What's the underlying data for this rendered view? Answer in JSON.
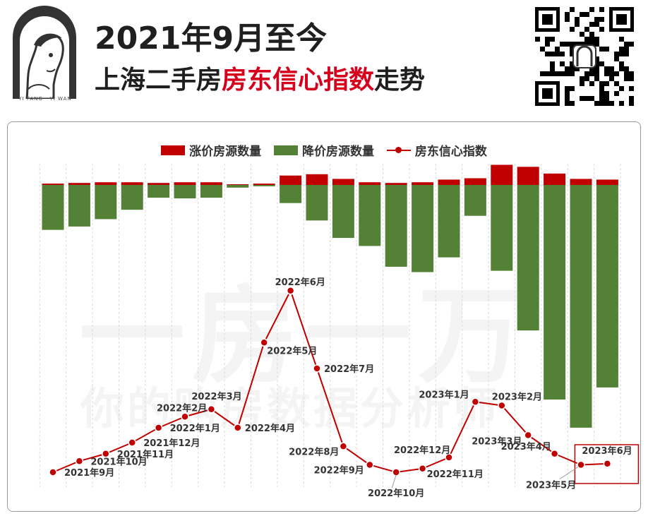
{
  "brand": {
    "logo_text": "YI FANG · YI WAN",
    "qr_icon": "qr-code-icon"
  },
  "header": {
    "title_line1": "2021年9月至今",
    "title_line2_prefix": "上海二手房",
    "title_line2_highlight": "房东信心指数",
    "title_line2_suffix": "走势"
  },
  "watermark": {
    "large": "一房一万",
    "small": "你的购房数据分析师"
  },
  "colors": {
    "up": "#c00000",
    "down": "#538135",
    "index_line": "#c00000",
    "highlight_box": "#c00000",
    "title_highlight": "#d6001c"
  },
  "chart_data": {
    "type": "bar+line",
    "categories": [
      "2021年9月",
      "2021年10月",
      "2021年11月",
      "2021年12月",
      "2022年1月",
      "2022年2月",
      "2022年3月",
      "2022年4月",
      "2022年5月",
      "2022年6月",
      "2022年7月",
      "2022年8月",
      "2022年9月",
      "2022年10月",
      "2022年11月",
      "2022年12月",
      "2023年1月",
      "2023年2月",
      "2023年3月",
      "2023年4月",
      "2023年5月",
      "2023年6月"
    ],
    "legend": [
      "涨价房源数量",
      "降价房源数量",
      "房东信心指数"
    ],
    "series": [
      {
        "name": "涨价房源数量",
        "type": "bar",
        "values": [
          2,
          3,
          4,
          4,
          3,
          4,
          4,
          1,
          2,
          14,
          16,
          9,
          4,
          3,
          4,
          8,
          10,
          30,
          27,
          17,
          9,
          8
        ]
      },
      {
        "name": "降价房源数量",
        "type": "bar",
        "values": [
          -67,
          -62,
          -51,
          -37,
          -19,
          -20,
          -19,
          -4,
          -2,
          -27,
          -53,
          -79,
          -91,
          -122,
          -130,
          -108,
          -46,
          -128,
          -217,
          -320,
          -362,
          -302
        ]
      },
      {
        "name": "房东信心指数",
        "type": "line",
        "values": [
          3,
          6,
          8,
          11,
          15,
          18,
          20,
          15,
          38,
          52,
          31,
          10,
          5,
          3,
          4,
          7,
          22,
          21,
          13,
          8,
          5,
          5.3
        ]
      }
    ],
    "highlight": "2023年6月"
  }
}
